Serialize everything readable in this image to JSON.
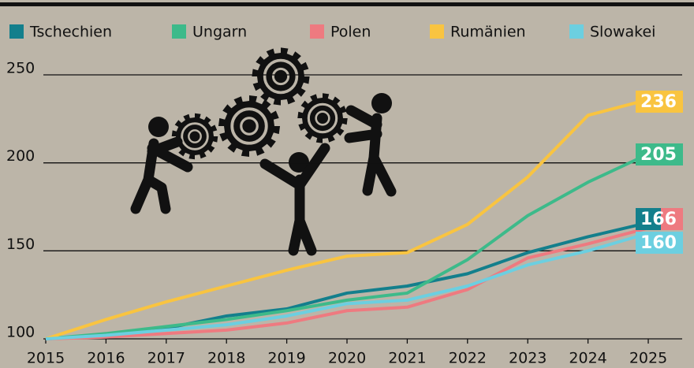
{
  "chart_data": {
    "type": "line",
    "x": [
      2015,
      2016,
      2017,
      2018,
      2019,
      2020,
      2021,
      2022,
      2023,
      2024,
      2025
    ],
    "xlim": [
      2015,
      2025
    ],
    "xticks": [
      2015,
      2016,
      2017,
      2018,
      2019,
      2020,
      2021,
      2022,
      2023,
      2024,
      2025
    ],
    "ylim": [
      100,
      250
    ],
    "yticks": [
      100,
      150,
      200,
      250
    ],
    "grid": true,
    "series": [
      {
        "name": "Tschechien",
        "color": "#137f8c",
        "values": [
          100,
          102,
          106,
          113,
          117,
          126,
          130,
          137,
          149,
          158,
          166
        ]
      },
      {
        "name": "Ungarn",
        "color": "#3dba8a",
        "values": [
          100,
          103,
          107,
          111,
          116,
          122,
          126,
          145,
          170,
          189,
          205
        ]
      },
      {
        "name": "Polen",
        "color": "#ee7a80",
        "values": [
          100,
          101,
          103,
          105,
          109,
          116,
          118,
          128,
          146,
          154,
          163
        ]
      },
      {
        "name": "Rumänien",
        "color": "#f9c440",
        "values": [
          100,
          111,
          121,
          130,
          139,
          147,
          149,
          165,
          192,
          227,
          236
        ]
      },
      {
        "name": "Slowakei",
        "color": "#6ccfe0",
        "values": [
          100,
          102,
          105,
          108,
          113,
          120,
          122,
          130,
          142,
          150,
          160
        ]
      }
    ]
  }
}
